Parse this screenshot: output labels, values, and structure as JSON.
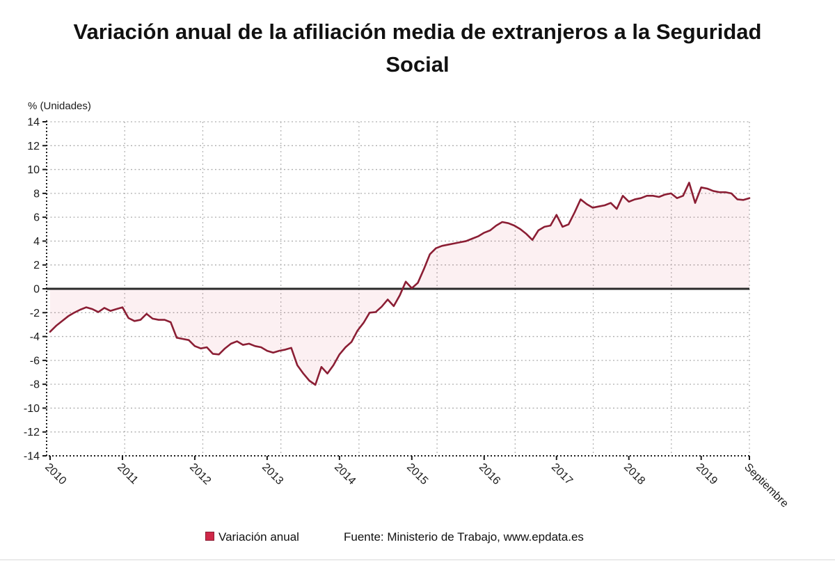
{
  "page": {
    "title_line1": "Variación anual de la afiliación media de extranjeros a la Seguridad",
    "title_line2": "Social",
    "footer_source": "Fuente: Ministerio de Trabajo, www.epdata.es"
  },
  "colors": {
    "line": "#8b1e34",
    "area_fill": "rgba(206,39,73,0.07)",
    "legend_marker": "#cf2848",
    "legend_marker_border": "#8b1e34",
    "h_grid": "#adadad",
    "v_grid": "#b5b5b5",
    "axis": "#1a1a1a",
    "zero_line": "#2a2a2a"
  },
  "chart_data": {
    "type": "line",
    "title": "Variación anual de la afiliación media de extranjeros a la Seguridad Social",
    "ylabel": "% (Unidades)",
    "xlabel": "",
    "ylim": [
      -14,
      14
    ],
    "ytick_step": 2,
    "y_ticks": [
      14,
      12,
      10,
      8,
      6,
      4,
      2,
      0,
      -2,
      -4,
      -6,
      -8,
      -10,
      -12,
      -14
    ],
    "grid": true,
    "legend_position": "bottom-center",
    "x_start": "2010-01",
    "x_end": "2019-09",
    "x_ticks": [
      {
        "label": "2010",
        "month": 0
      },
      {
        "label": "2011",
        "month": 12
      },
      {
        "label": "2012",
        "month": 24
      },
      {
        "label": "2013",
        "month": 36
      },
      {
        "label": "2014",
        "month": 48
      },
      {
        "label": "2015",
        "month": 60
      },
      {
        "label": "2016",
        "month": 72
      },
      {
        "label": "2017",
        "month": 84
      },
      {
        "label": "2018",
        "month": 96
      },
      {
        "label": "2019",
        "month": 108
      },
      {
        "label": "Septiembre",
        "month": 116
      }
    ],
    "series": [
      {
        "name": "Variación anual",
        "color": "#8b1e34",
        "fill": "rgba(206,39,73,0.07)",
        "values": [
          -3.6,
          -3.1,
          -2.7,
          -2.3,
          -2.0,
          -1.75,
          -1.55,
          -1.7,
          -1.95,
          -1.6,
          -1.85,
          -1.7,
          -1.55,
          -2.45,
          -2.7,
          -2.6,
          -2.1,
          -2.5,
          -2.6,
          -2.6,
          -2.8,
          -4.1,
          -4.2,
          -4.3,
          -4.8,
          -5.0,
          -4.9,
          -5.45,
          -5.5,
          -5.0,
          -4.6,
          -4.4,
          -4.7,
          -4.6,
          -4.8,
          -4.9,
          -5.2,
          -5.35,
          -5.2,
          -5.1,
          -4.95,
          -6.4,
          -7.1,
          -7.7,
          -8.05,
          -6.55,
          -7.1,
          -6.4,
          -5.5,
          -4.9,
          -4.45,
          -3.5,
          -2.85,
          -2.0,
          -1.95,
          -1.5,
          -0.9,
          -1.45,
          -0.55,
          0.6,
          0.05,
          0.5,
          1.65,
          2.9,
          3.4,
          3.6,
          3.7,
          3.8,
          3.9,
          4.0,
          4.2,
          4.4,
          4.7,
          4.9,
          5.3,
          5.6,
          5.5,
          5.3,
          5.0,
          4.6,
          4.1,
          4.9,
          5.2,
          5.3,
          6.2,
          5.2,
          5.4,
          6.4,
          7.5,
          7.1,
          6.8,
          6.9,
          7.0,
          7.2,
          6.7,
          7.8,
          7.3,
          7.5,
          7.6,
          7.8,
          7.8,
          7.7,
          7.9,
          8.0,
          7.6,
          7.8,
          8.9,
          7.2,
          8.5,
          8.4,
          8.2,
          8.1,
          8.1,
          8.0,
          7.5,
          7.45,
          7.6
        ]
      }
    ]
  }
}
